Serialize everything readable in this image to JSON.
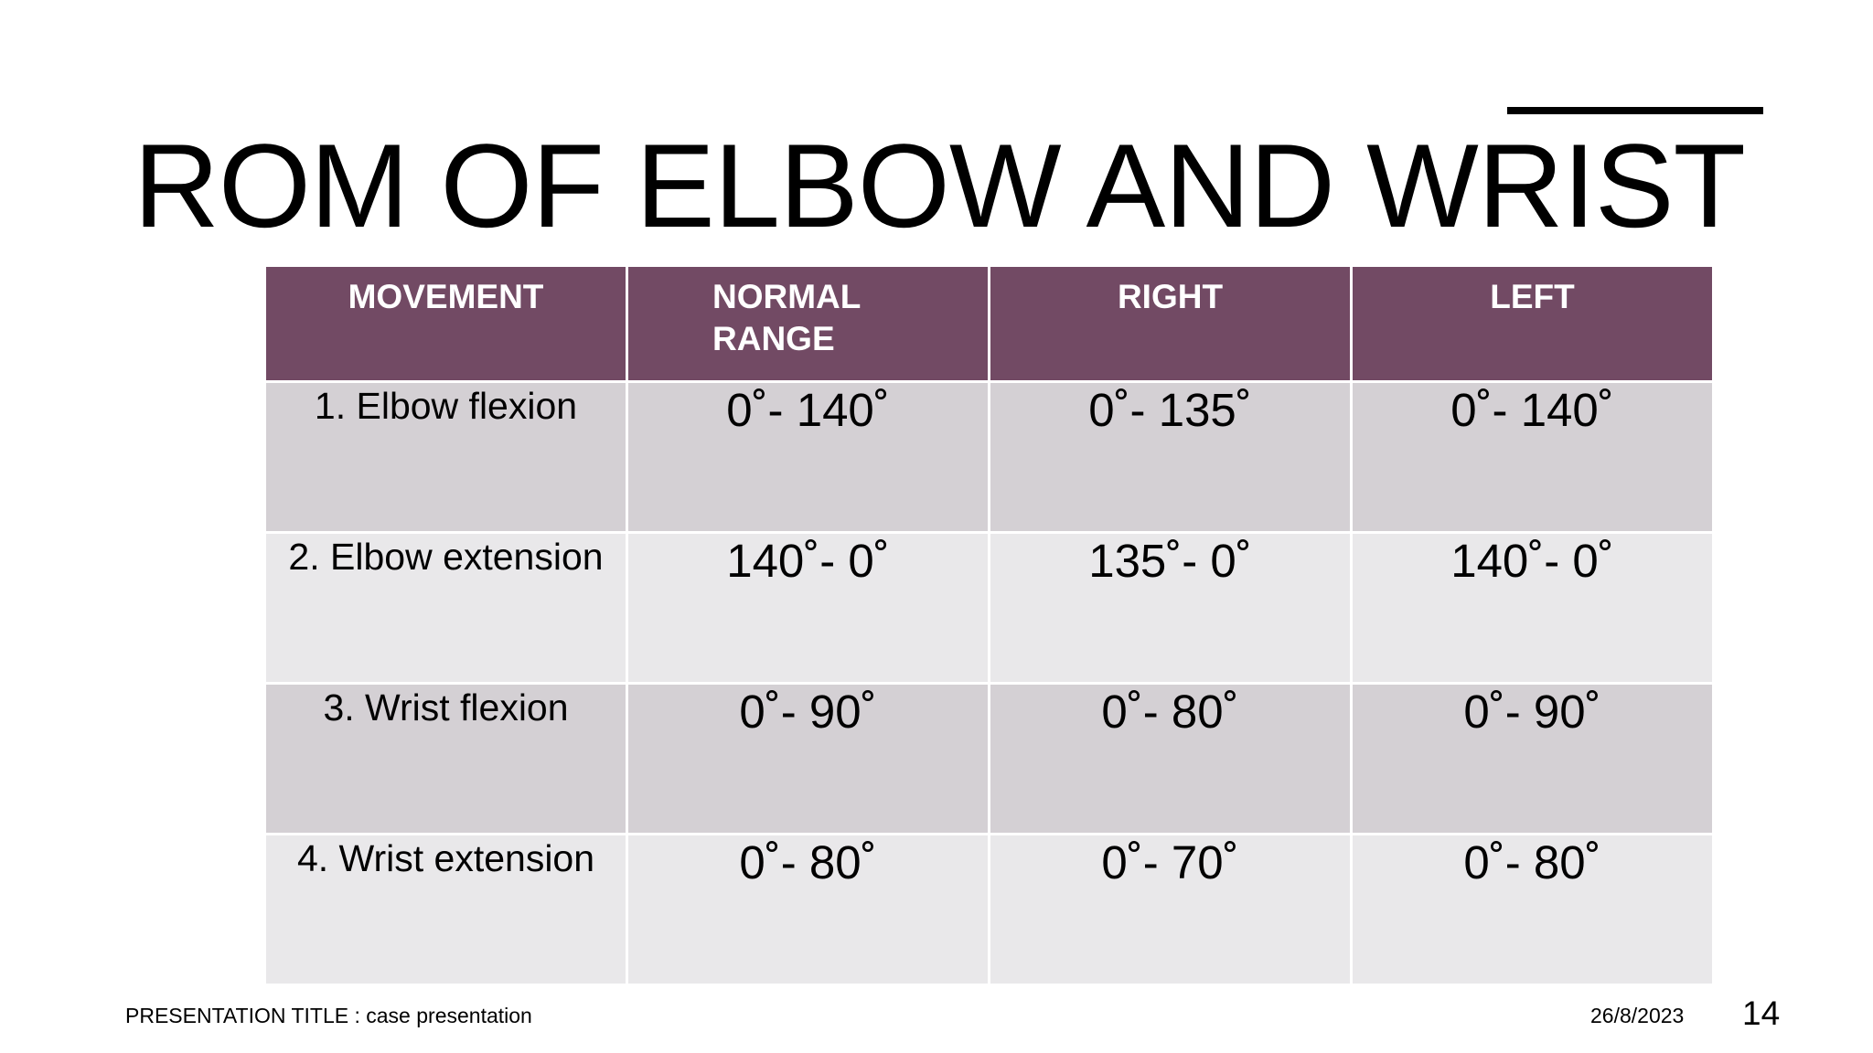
{
  "slide": {
    "title": "ROM OF ELBOW AND WRIST"
  },
  "table": {
    "headers": [
      "MOVEMENT",
      "NORMAL RANGE",
      "RIGHT",
      "LEFT"
    ],
    "rows": [
      [
        "1. Elbow flexion",
        "0˚- 140˚",
        "0˚- 135˚",
        "0˚- 140˚"
      ],
      [
        "2. Elbow extension",
        "140˚- 0˚",
        "135˚- 0˚",
        "140˚- 0˚"
      ],
      [
        "3. Wrist flexion",
        "0˚- 90˚",
        "0˚- 80˚",
        "0˚- 90˚"
      ],
      [
        "4. Wrist extension",
        "0˚- 80˚",
        "0˚- 70˚",
        "0˚- 80˚"
      ]
    ]
  },
  "footer": {
    "presentation_title": "PRESENTATION TITLE : case presentation",
    "date": "26/8/2023",
    "page_number": "14"
  },
  "colors": {
    "header_fill": "#724a64",
    "row_odd_fill": "#d4d0d4",
    "row_even_fill": "#e9e8ea",
    "text": "#000000",
    "header_text": "#ffffff"
  }
}
